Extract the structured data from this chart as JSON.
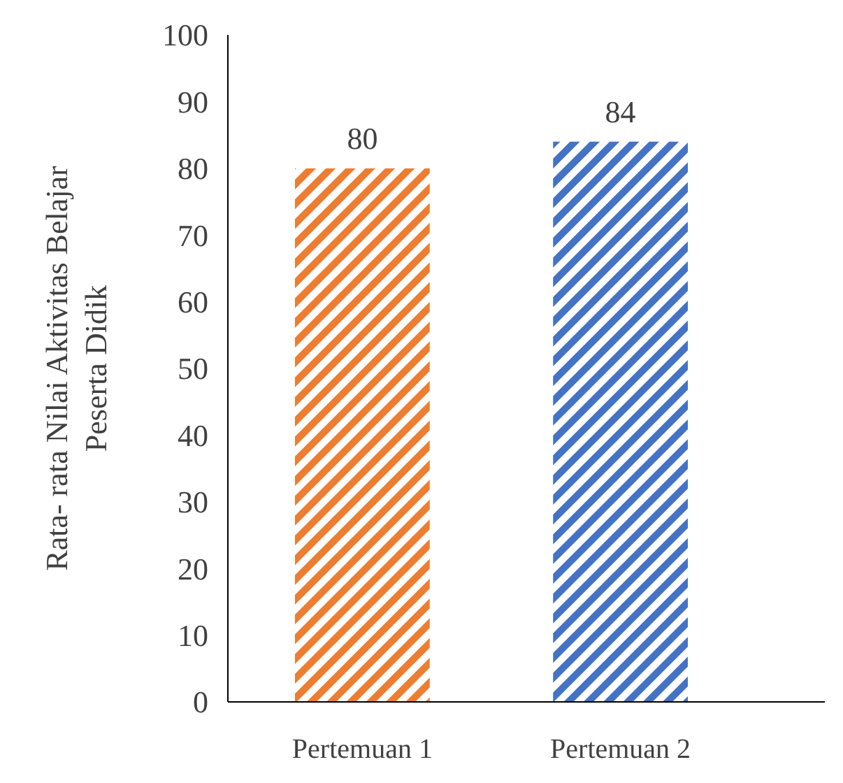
{
  "chart_data": {
    "type": "bar",
    "ylabel": "Rata- rata Nilai  Aktivitas Belajar\nPeserta Didik",
    "categories": [
      "Pertemuan 1",
      "Pertemuan 2"
    ],
    "values": [
      80,
      84
    ],
    "colors": [
      "#ed7d31",
      "#4472c4"
    ],
    "ylim": [
      0,
      100
    ],
    "yticks": [
      0,
      10,
      20,
      30,
      40,
      50,
      60,
      70,
      80,
      90,
      100
    ],
    "data_labels": true,
    "grid": false
  }
}
